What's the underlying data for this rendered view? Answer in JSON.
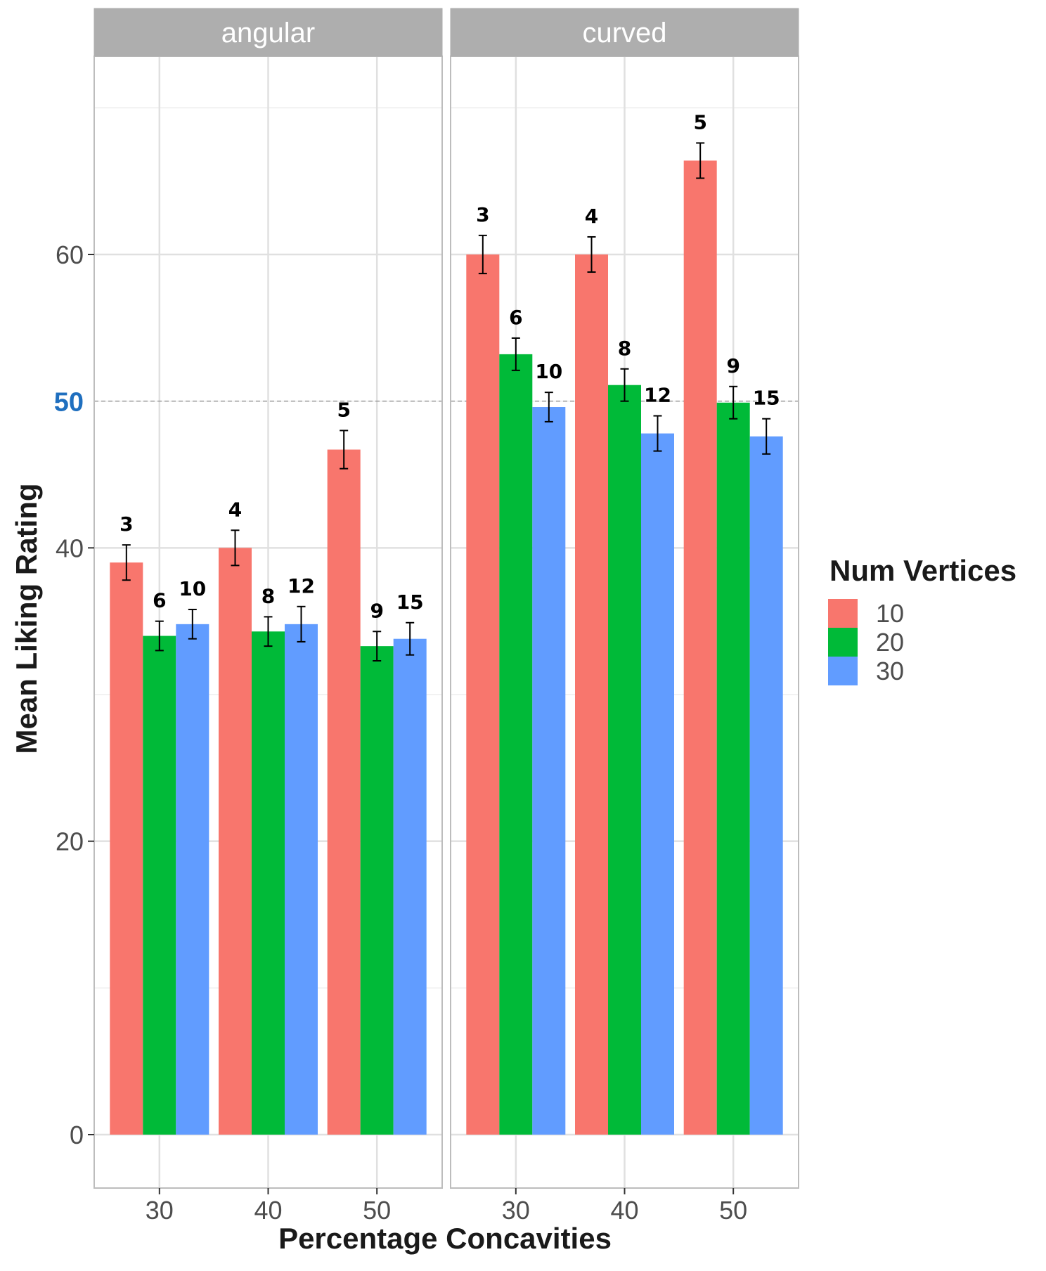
{
  "chart_data": {
    "type": "bar",
    "xlabel": "Percentage Concavities",
    "ylabel": "Mean Liking Rating",
    "ylim": [
      0,
      70
    ],
    "yticks": [
      0,
      20,
      40,
      60
    ],
    "reference_line": 50,
    "reference_tick_label": "50",
    "grid": true,
    "categories": [
      "30",
      "40",
      "50"
    ],
    "legend": {
      "title": "Num Vertices",
      "placement": "right",
      "entries": [
        "10",
        "20",
        "30"
      ]
    },
    "colors": {
      "10": "#F8766D",
      "20": "#00BA38",
      "30": "#619CFF"
    },
    "panels": [
      {
        "name": "angular",
        "series": [
          {
            "name": "10",
            "values": [
              39,
              40,
              46.7
            ],
            "errors": [
              1.2,
              1.2,
              1.3
            ],
            "labels": [
              "3",
              "4",
              "5"
            ]
          },
          {
            "name": "20",
            "values": [
              34,
              34.3,
              33.3
            ],
            "errors": [
              1.0,
              1.0,
              1.0
            ],
            "labels": [
              "6",
              "8",
              "9"
            ]
          },
          {
            "name": "30",
            "values": [
              34.8,
              34.8,
              33.8
            ],
            "errors": [
              1.0,
              1.2,
              1.1
            ],
            "labels": [
              "10",
              "12",
              "15"
            ]
          }
        ]
      },
      {
        "name": "curved",
        "series": [
          {
            "name": "10",
            "values": [
              60,
              60,
              66.4
            ],
            "errors": [
              1.3,
              1.2,
              1.2
            ],
            "labels": [
              "3",
              "4",
              "5"
            ]
          },
          {
            "name": "20",
            "values": [
              53.2,
              51.1,
              49.9
            ],
            "errors": [
              1.1,
              1.1,
              1.1
            ],
            "labels": [
              "6",
              "8",
              "9"
            ]
          },
          {
            "name": "30",
            "values": [
              49.6,
              47.8,
              47.6
            ],
            "errors": [
              1.0,
              1.2,
              1.2
            ],
            "labels": [
              "10",
              "12",
              "15"
            ]
          }
        ]
      }
    ]
  }
}
